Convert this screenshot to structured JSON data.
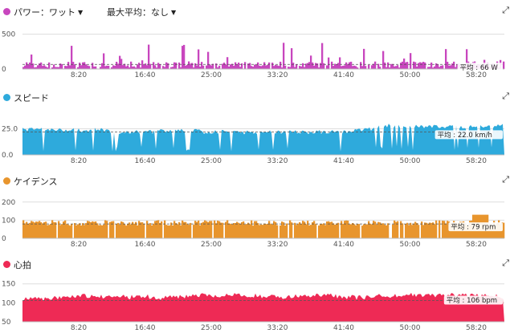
{
  "panels": [
    {
      "id": "power",
      "title": "パワー：ワット",
      "has_dropdown": true,
      "max_avg_label": "最大平均：なし",
      "color": "#c846be",
      "y_ticks": [
        "500",
        "0"
      ],
      "y_tick_values": [
        500,
        0
      ],
      "y_max": 600,
      "avg_value": 66,
      "avg_label": "平均 : 66 W",
      "kind": "power",
      "seed": 11
    },
    {
      "id": "speed",
      "title": "スピード",
      "has_dropdown": false,
      "color": "#2eaadc",
      "y_ticks": [
        "25.0",
        "0.0"
      ],
      "y_tick_values": [
        25,
        0
      ],
      "y_max": 40,
      "avg_value": 22,
      "avg_label": "平均 : 22.0 km/h",
      "kind": "speed",
      "seed": 23
    },
    {
      "id": "cadence",
      "title": "ケイデンス",
      "has_dropdown": false,
      "color": "#e8952d",
      "y_ticks": [
        "200",
        "100",
        "0"
      ],
      "y_tick_values": [
        200,
        100,
        0
      ],
      "y_max": 230,
      "avg_value": 79,
      "avg_label": "平均 : 79 rpm",
      "kind": "cadence",
      "seed": 37
    },
    {
      "id": "heart",
      "title": "心拍",
      "has_dropdown": false,
      "color": "#ee2a55",
      "y_ticks": [
        "150",
        "100",
        "50"
      ],
      "y_tick_values": [
        150,
        100,
        50
      ],
      "y_max": 160,
      "y_min": 50,
      "avg_value": 106,
      "avg_label": "平均 : 106 bpm",
      "kind": "heart",
      "seed": 51
    }
  ],
  "x_ticks": [
    "8:20",
    "16:40",
    "25:00",
    "33:20",
    "41:40",
    "50:00",
    "58:20"
  ]
}
